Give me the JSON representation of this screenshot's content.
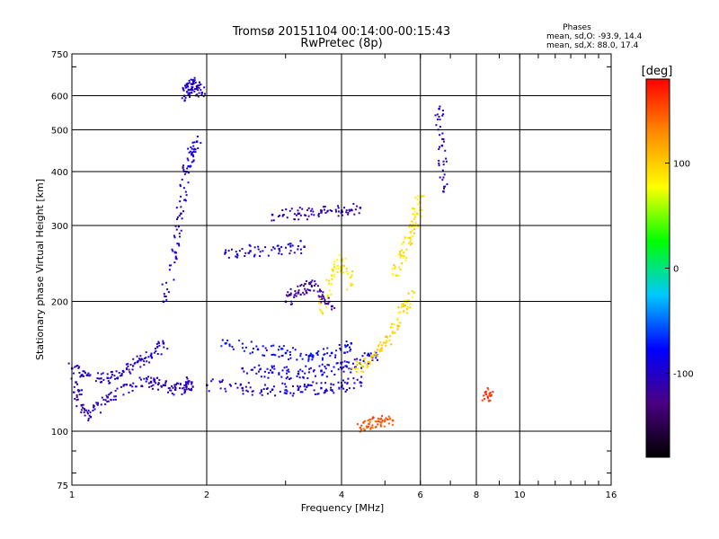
{
  "chart_data": {
    "type": "scatter",
    "title": "Tromsø 20151104 00:14:00-00:15:43",
    "subtitle": "RwPretec (8p)",
    "xlabel": "Frequency [MHz]",
    "ylabel": "Stationary phase Virtual Height [km]",
    "x_scale": "log",
    "y_scale": "log",
    "xlim": [
      1,
      16
    ],
    "ylim": [
      75,
      750
    ],
    "x_ticks": [
      1,
      2,
      4,
      6,
      8,
      10,
      16
    ],
    "y_ticks": [
      75,
      100,
      200,
      300,
      400,
      500,
      600,
      750
    ],
    "x_gridlines": [
      2,
      4,
      6,
      8,
      10
    ],
    "y_gridlines": [
      100,
      200,
      300,
      400,
      500,
      600
    ],
    "grid": true,
    "phases_box": {
      "title": "Phases",
      "line_o": "mean, sd,O: -93.9, 14.4",
      "line_x": "mean, sd,X:  88.0, 17.4"
    },
    "colorbar": {
      "label": "[deg]",
      "range": [
        -180,
        180
      ],
      "ticks": [
        100,
        0,
        -100
      ],
      "colors": [
        "#000000",
        "#4b0082",
        "#0000ff",
        "#00c8ff",
        "#00ff00",
        "#ffff00",
        "#ff8c00",
        "#ff0000"
      ]
    },
    "traces": [
      {
        "name": "",
        "x": [
          1.02,
          1.05,
          1.1,
          1.2,
          1.35,
          1.5,
          1.6,
          1.7,
          1.8,
          1.85
        ],
        "y": [
          130,
          115,
          108,
          120,
          128,
          130,
          128,
          125,
          127,
          130
        ],
        "phase": -105
      },
      {
        "name": "",
        "x": [
          1.0,
          1.08,
          1.2,
          1.3,
          1.4,
          1.5,
          1.6
        ],
        "y": [
          140,
          135,
          133,
          138,
          145,
          150,
          160
        ],
        "phase": -100
      },
      {
        "name": "",
        "x": [
          1.6,
          1.7,
          1.75,
          1.8,
          1.85,
          1.9
        ],
        "y": [
          200,
          260,
          320,
          400,
          440,
          470
        ],
        "phase": -95
      },
      {
        "name": "",
        "x": [
          1.78,
          1.82,
          1.86,
          1.9,
          1.95
        ],
        "y": [
          600,
          620,
          640,
          630,
          610
        ],
        "phase": -100
      },
      {
        "name": "",
        "x": [
          2.0,
          2.4,
          2.8,
          3.2,
          3.6,
          4.0,
          4.4
        ],
        "y": [
          128,
          126,
          125,
          125,
          126,
          127,
          130
        ],
        "phase": -95
      },
      {
        "name": "",
        "x": [
          2.4,
          2.8,
          3.2,
          3.6,
          4.0,
          4.4,
          4.8
        ],
        "y": [
          140,
          137,
          136,
          138,
          140,
          144,
          150
        ],
        "phase": -90
      },
      {
        "name": "",
        "x": [
          2.2,
          2.6,
          3.0,
          3.4,
          3.8,
          4.2
        ],
        "y": [
          160,
          155,
          152,
          150,
          152,
          160
        ],
        "phase": -80
      },
      {
        "name": "",
        "x": [
          2.2,
          2.5,
          2.9,
          3.3
        ],
        "y": [
          260,
          262,
          265,
          268
        ],
        "phase": -95
      },
      {
        "name": "",
        "x": [
          2.8,
          3.2,
          3.6,
          4.0,
          4.4
        ],
        "y": [
          318,
          320,
          322,
          325,
          330
        ],
        "phase": -110
      },
      {
        "name": "",
        "x": [
          3.0,
          3.2,
          3.4,
          3.6,
          3.8
        ],
        "y": [
          200,
          210,
          220,
          205,
          195
        ],
        "phase": -120
      },
      {
        "name": "",
        "x": [
          3.6,
          3.8,
          4.0,
          4.2
        ],
        "y": [
          190,
          230,
          250,
          220
        ],
        "phase": 85
      },
      {
        "name": "",
        "x": [
          4.3,
          4.6,
          4.9,
          5.2,
          5.5,
          5.8
        ],
        "y": [
          140,
          145,
          155,
          170,
          190,
          210
        ],
        "phase": 95
      },
      {
        "name": "",
        "x": [
          5.3,
          5.5,
          5.7,
          5.9,
          6.0
        ],
        "y": [
          230,
          260,
          290,
          320,
          350
        ],
        "phase": 90
      },
      {
        "name": "",
        "x": [
          4.4,
          4.6,
          4.9,
          5.2
        ],
        "y": [
          102,
          104,
          105,
          106
        ],
        "phase": 150
      },
      {
        "name": "",
        "x": [
          6.6,
          6.7,
          6.75
        ],
        "y": [
          560,
          460,
          360
        ],
        "phase": -100
      },
      {
        "name": "",
        "x": [
          8.4,
          8.6
        ],
        "y": [
          122,
          121
        ],
        "phase": 160
      }
    ]
  }
}
